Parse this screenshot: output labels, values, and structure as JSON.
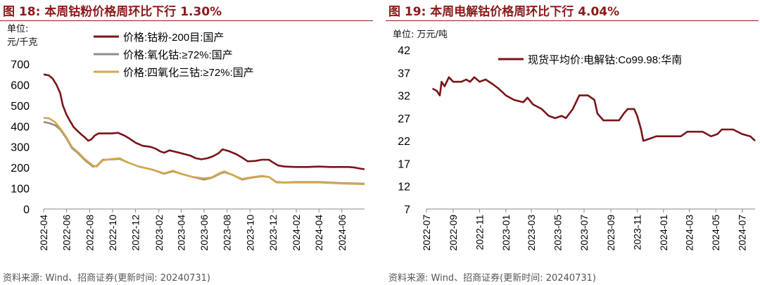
{
  "panels": [
    {
      "title": "图 18: 本周钴粉价格周环比下行 1.30%",
      "unit_lines": [
        "单位:",
        "元/千克"
      ],
      "source": "资料来源: Wind、招商证券(更新时间: 20240731)"
    },
    {
      "title": "图 19: 本周电解钴价格周环比下行 4.04%",
      "unit_lines": [
        "单位: 万元/吨"
      ],
      "source": "资料来源: Wind、招商证券(更新时间: 20240731)"
    }
  ],
  "colors": {
    "title": "#8B1A1A",
    "series_dark_red": "#7A1418",
    "series_gray": "#8C8C8C",
    "series_gold": "#D4A84B"
  },
  "chart_data": [
    {
      "type": "line",
      "title": "本周钴粉价格周环比下行 1.30%",
      "ylabel": "元/千克",
      "ylim": [
        0,
        700
      ],
      "yticks": [
        0,
        100,
        200,
        300,
        400,
        500,
        600,
        700
      ],
      "xlim": [
        "2022-04",
        "2024-07-31"
      ],
      "xticks": [
        "2022-04",
        "2022-06",
        "2022-08",
        "2022-10",
        "2022-12",
        "2023-02",
        "2023-04",
        "2023-06",
        "2023-08",
        "2023-10",
        "2023-12",
        "2024-02",
        "2024-04",
        "2024-06"
      ],
      "legend_position": "top",
      "grid": false,
      "series": [
        {
          "name": "价格:钴粉-200目:国产",
          "color": "#7A1418",
          "points": [
            [
              "2022-04-01",
              650
            ],
            [
              "2022-04-15",
              645
            ],
            [
              "2022-04-25",
              630
            ],
            [
              "2022-05-05",
              600
            ],
            [
              "2022-05-15",
              560
            ],
            [
              "2022-05-22",
              500
            ],
            [
              "2022-06-01",
              455
            ],
            [
              "2022-06-10",
              425
            ],
            [
              "2022-06-20",
              395
            ],
            [
              "2022-07-01",
              375
            ],
            [
              "2022-07-10",
              360
            ],
            [
              "2022-07-20",
              345
            ],
            [
              "2022-07-28",
              330
            ],
            [
              "2022-08-05",
              335
            ],
            [
              "2022-08-15",
              355
            ],
            [
              "2022-08-25",
              365
            ],
            [
              "2022-09-10",
              365
            ],
            [
              "2022-10-01",
              365
            ],
            [
              "2022-10-15",
              368
            ],
            [
              "2022-11-01",
              355
            ],
            [
              "2022-11-15",
              340
            ],
            [
              "2022-12-01",
              320
            ],
            [
              "2022-12-20",
              305
            ],
            [
              "2023-01-10",
              300
            ],
            [
              "2023-01-25",
              290
            ],
            [
              "2023-02-05",
              278
            ],
            [
              "2023-02-15",
              272
            ],
            [
              "2023-03-01",
              283
            ],
            [
              "2023-03-20",
              275
            ],
            [
              "2023-04-10",
              265
            ],
            [
              "2023-04-25",
              258
            ],
            [
              "2023-05-10",
              245
            ],
            [
              "2023-05-25",
              240
            ],
            [
              "2023-06-10",
              245
            ],
            [
              "2023-06-25",
              255
            ],
            [
              "2023-07-10",
              270
            ],
            [
              "2023-07-20",
              288
            ],
            [
              "2023-08-05",
              280
            ],
            [
              "2023-08-25",
              265
            ],
            [
              "2023-09-10",
              248
            ],
            [
              "2023-09-25",
              230
            ],
            [
              "2023-10-15",
              232
            ],
            [
              "2023-11-01",
              238
            ],
            [
              "2023-11-20",
              238
            ],
            [
              "2023-12-01",
              225
            ],
            [
              "2023-12-15",
              210
            ],
            [
              "2024-01-01",
              205
            ],
            [
              "2024-02-01",
              203
            ],
            [
              "2024-03-01",
              203
            ],
            [
              "2024-04-01",
              205
            ],
            [
              "2024-05-01",
              203
            ],
            [
              "2024-06-01",
              203
            ],
            [
              "2024-06-20",
              203
            ],
            [
              "2024-07-05",
              200
            ],
            [
              "2024-07-20",
              195
            ],
            [
              "2024-07-31",
              192
            ]
          ]
        },
        {
          "name": "价格:氧化钴:≥72%:国产",
          "color": "#8C8C8C",
          "points": [
            [
              "2022-04-01",
              420
            ],
            [
              "2022-04-15",
              415
            ],
            [
              "2022-05-01",
              405
            ],
            [
              "2022-05-15",
              385
            ],
            [
              "2022-06-01",
              340
            ],
            [
              "2022-06-15",
              295
            ],
            [
              "2022-07-01",
              270
            ],
            [
              "2022-07-20",
              235
            ],
            [
              "2022-08-10",
              205
            ],
            [
              "2022-08-20",
              208
            ],
            [
              "2022-09-05",
              238
            ],
            [
              "2022-10-01",
              240
            ],
            [
              "2022-10-20",
              242
            ],
            [
              "2022-11-10",
              225
            ],
            [
              "2022-12-10",
              205
            ],
            [
              "2023-01-15",
              190
            ],
            [
              "2023-02-15",
              170
            ],
            [
              "2023-03-10",
              182
            ],
            [
              "2023-04-01",
              170
            ],
            [
              "2023-05-01",
              155
            ],
            [
              "2023-06-01",
              142
            ],
            [
              "2023-06-20",
              150
            ],
            [
              "2023-07-15",
              172
            ],
            [
              "2023-07-25",
              178
            ],
            [
              "2023-08-15",
              165
            ],
            [
              "2023-09-10",
              142
            ],
            [
              "2023-10-01",
              150
            ],
            [
              "2023-11-01",
              158
            ],
            [
              "2023-11-20",
              155
            ],
            [
              "2023-12-10",
              130
            ],
            [
              "2024-01-01",
              128
            ],
            [
              "2024-02-01",
              130
            ],
            [
              "2024-04-01",
              130
            ],
            [
              "2024-06-01",
              125
            ],
            [
              "2024-07-31",
              122
            ]
          ]
        },
        {
          "name": "价格:四氧化三钴:≥72%:国产",
          "color": "#D4A84B",
          "points": [
            [
              "2022-04-01",
              440
            ],
            [
              "2022-04-15",
              438
            ],
            [
              "2022-05-01",
              420
            ],
            [
              "2022-05-15",
              390
            ],
            [
              "2022-06-01",
              345
            ],
            [
              "2022-06-15",
              300
            ],
            [
              "2022-07-01",
              275
            ],
            [
              "2022-07-20",
              240
            ],
            [
              "2022-08-10",
              210
            ],
            [
              "2022-08-20",
              205
            ],
            [
              "2022-09-05",
              235
            ],
            [
              "2022-10-01",
              242
            ],
            [
              "2022-10-20",
              245
            ],
            [
              "2022-11-10",
              225
            ],
            [
              "2022-12-10",
              205
            ],
            [
              "2023-01-15",
              190
            ],
            [
              "2023-02-15",
              172
            ],
            [
              "2023-03-10",
              185
            ],
            [
              "2023-04-01",
              170
            ],
            [
              "2023-05-01",
              155
            ],
            [
              "2023-06-01",
              148
            ],
            [
              "2023-06-20",
              152
            ],
            [
              "2023-07-15",
              175
            ],
            [
              "2023-07-25",
              182
            ],
            [
              "2023-08-15",
              165
            ],
            [
              "2023-09-10",
              145
            ],
            [
              "2023-10-01",
              152
            ],
            [
              "2023-11-01",
              160
            ],
            [
              "2023-11-20",
              155
            ],
            [
              "2023-12-10",
              128
            ],
            [
              "2024-01-01",
              127
            ],
            [
              "2024-02-01",
              128
            ],
            [
              "2024-04-01",
              128
            ],
            [
              "2024-06-01",
              123
            ],
            [
              "2024-07-31",
              120
            ]
          ]
        }
      ]
    },
    {
      "type": "line",
      "title": "本周电解钴价格周环比下行 4.04%",
      "ylabel": "万元/吨",
      "ylim": [
        7,
        42
      ],
      "yticks": [
        7,
        12,
        17,
        22,
        27,
        32,
        37,
        42
      ],
      "xlim": [
        "2022-07",
        "2024-07-31"
      ],
      "xticks": [
        "2022-07",
        "2022-09",
        "2022-11",
        "2023-01",
        "2023-03",
        "2023-05",
        "2023-07",
        "2023-09",
        "2023-11",
        "2024-01",
        "2024-03",
        "2024-05",
        "2024-07"
      ],
      "legend_position": "top",
      "grid": false,
      "series": [
        {
          "name": "现货平均价:电解钴:Co99.98:华南",
          "color": "#7A1418",
          "points": [
            [
              "2022-07-15",
              33.5
            ],
            [
              "2022-07-25",
              33.0
            ],
            [
              "2022-08-01",
              32.0
            ],
            [
              "2022-08-05",
              35.0
            ],
            [
              "2022-08-12",
              34.0
            ],
            [
              "2022-08-22",
              36.0
            ],
            [
              "2022-09-01",
              35.0
            ],
            [
              "2022-09-20",
              35.0
            ],
            [
              "2022-10-01",
              35.5
            ],
            [
              "2022-10-10",
              35.0
            ],
            [
              "2022-10-20",
              36.0
            ],
            [
              "2022-11-01",
              35.0
            ],
            [
              "2022-11-15",
              35.5
            ],
            [
              "2022-12-01",
              34.5
            ],
            [
              "2022-12-15",
              33.5
            ],
            [
              "2023-01-01",
              32.0
            ],
            [
              "2023-01-20",
              31.0
            ],
            [
              "2023-02-10",
              30.5
            ],
            [
              "2023-02-20",
              31.5
            ],
            [
              "2023-03-05",
              30.0
            ],
            [
              "2023-03-25",
              29.0
            ],
            [
              "2023-04-10",
              27.5
            ],
            [
              "2023-04-25",
              27.0
            ],
            [
              "2023-05-10",
              27.5
            ],
            [
              "2023-05-20",
              27.0
            ],
            [
              "2023-06-05",
              29.0
            ],
            [
              "2023-06-20",
              32.0
            ],
            [
              "2023-07-10",
              32.0
            ],
            [
              "2023-07-25",
              31.0
            ],
            [
              "2023-08-01",
              28.0
            ],
            [
              "2023-08-15",
              26.5
            ],
            [
              "2023-09-01",
              26.5
            ],
            [
              "2023-09-20",
              26.5
            ],
            [
              "2023-10-01",
              28.0
            ],
            [
              "2023-10-10",
              29.0
            ],
            [
              "2023-10-25",
              29.0
            ],
            [
              "2023-11-01",
              27.5
            ],
            [
              "2023-11-10",
              24.5
            ],
            [
              "2023-11-15",
              22.0
            ],
            [
              "2023-12-01",
              22.5
            ],
            [
              "2023-12-15",
              23.0
            ],
            [
              "2024-01-15",
              23.0
            ],
            [
              "2024-02-10",
              23.0
            ],
            [
              "2024-02-25",
              24.0
            ],
            [
              "2024-04-01",
              24.0
            ],
            [
              "2024-04-20",
              23.0
            ],
            [
              "2024-05-05",
              23.5
            ],
            [
              "2024-05-15",
              24.5
            ],
            [
              "2024-06-10",
              24.5
            ],
            [
              "2024-07-01",
              23.5
            ],
            [
              "2024-07-20",
              23.0
            ],
            [
              "2024-07-31",
              22.0
            ]
          ]
        }
      ]
    }
  ]
}
